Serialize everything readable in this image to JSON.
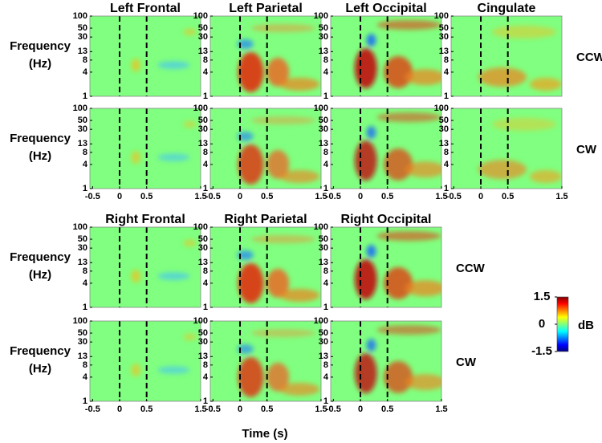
{
  "chart_data": {
    "type": "heatmap-grid",
    "x_label": "Time (s)",
    "y_label": [
      "Frequency",
      "(Hz)"
    ],
    "xlim": [
      -0.55,
      1.5
    ],
    "xticks": [
      -0.5,
      0,
      0.5,
      1.5
    ],
    "ylim": [
      1,
      100
    ],
    "yticks": [
      1,
      4,
      8,
      13,
      30,
      50,
      100
    ],
    "yscale": "log",
    "vlines": [
      0,
      0.5
    ],
    "groups": [
      {
        "regions": [
          "Left Frontal",
          "Left Parietal",
          "Left Occipital",
          "Cingulate"
        ],
        "conditions": [
          "CCW",
          "CW"
        ]
      },
      {
        "regions": [
          "Right Frontal",
          "Right Parietal",
          "Right Occipital"
        ],
        "conditions": [
          "CCW",
          "CW"
        ]
      }
    ],
    "colorbar": {
      "label": "dB",
      "lim": [
        -1.5,
        1.5
      ],
      "ticks": [
        1.5,
        0,
        -1.5
      ]
    }
  }
}
